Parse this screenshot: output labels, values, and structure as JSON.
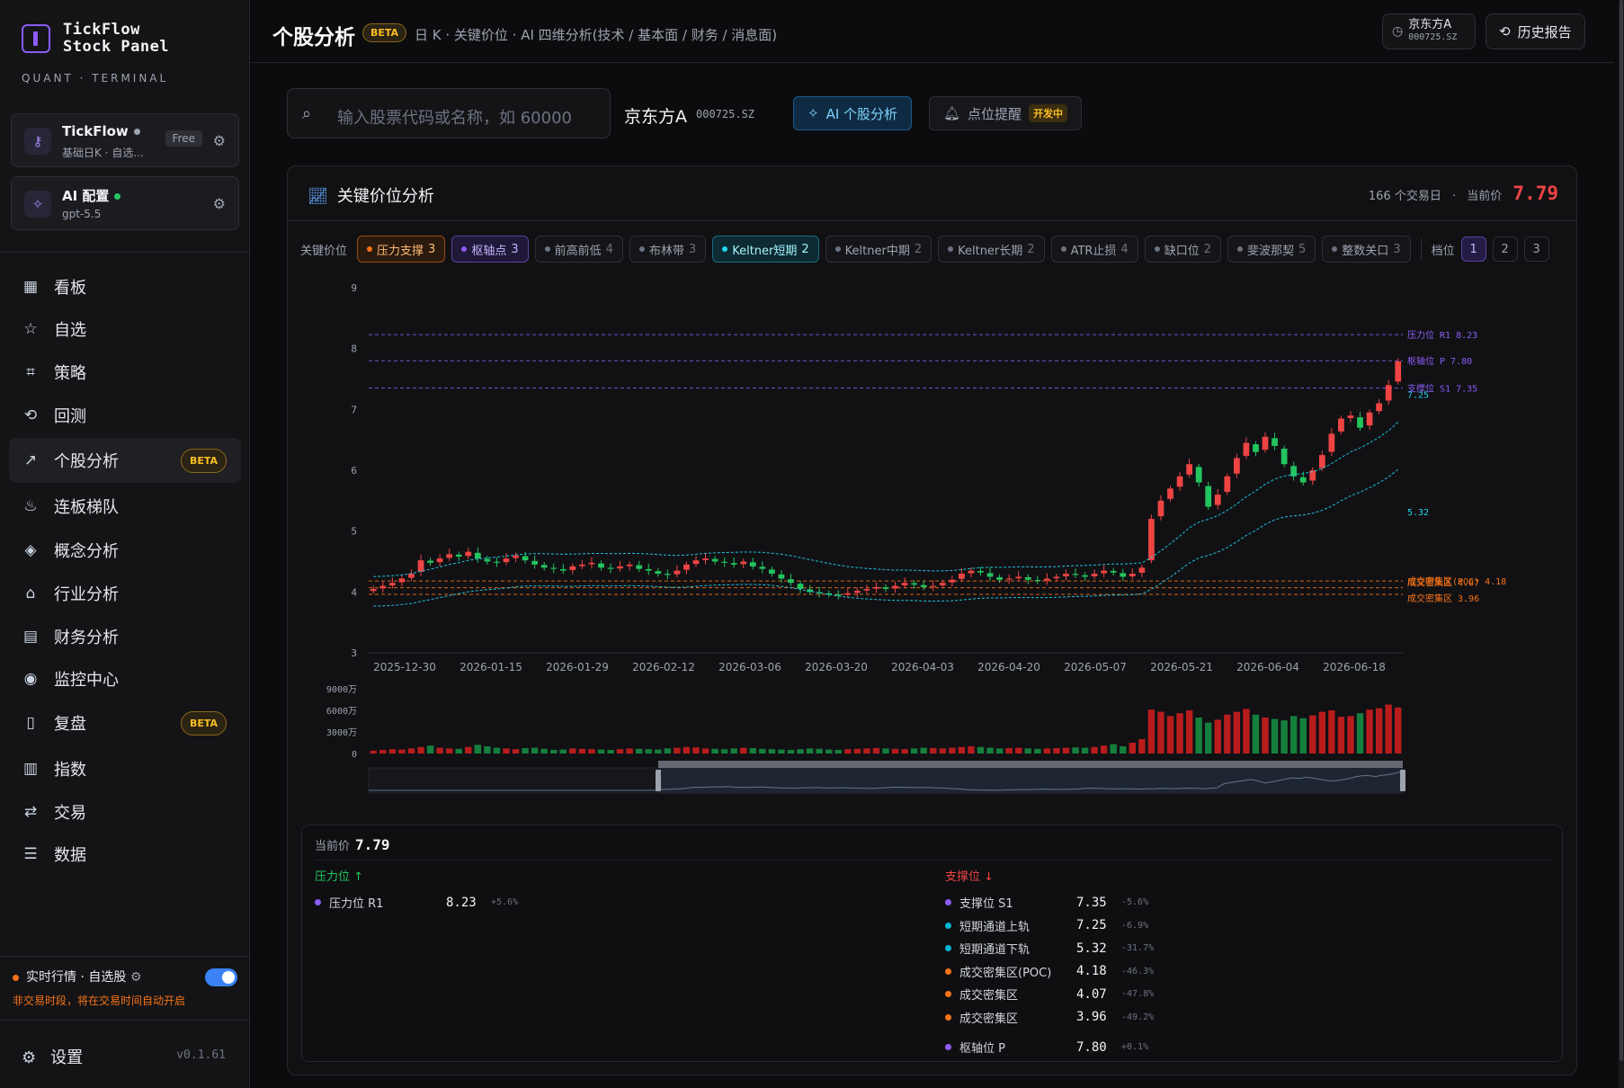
{
  "app": {
    "name": "TickFlow\nStock Panel",
    "name1": "TickFlow",
    "name2": "Stock Panel",
    "tagline": "QUANT · TERMINAL",
    "version": "v0.1.61"
  },
  "account_card": {
    "title": "TickFlow",
    "subtitle": "基础日K · 自选...",
    "badge": "Free",
    "status_color": "#9ca3af"
  },
  "ai_card": {
    "title": "AI 配置",
    "subtitle": "gpt-5.5",
    "status_color": "#22c55e"
  },
  "nav": [
    {
      "label": "看板",
      "icon": "grid-icon"
    },
    {
      "label": "自选",
      "icon": "star-icon"
    },
    {
      "label": "策略",
      "icon": "scan-icon"
    },
    {
      "label": "回测",
      "icon": "history-icon"
    },
    {
      "label": "个股分析",
      "icon": "trend-up-icon",
      "active": true,
      "badge": "BETA"
    },
    {
      "label": "连板梯队",
      "icon": "flame-icon"
    },
    {
      "label": "概念分析",
      "icon": "layers-icon"
    },
    {
      "label": "行业分析",
      "icon": "bank-icon"
    },
    {
      "label": "财务分析",
      "icon": "document-icon"
    },
    {
      "label": "监控中心",
      "icon": "radio-icon"
    },
    {
      "label": "复盘",
      "icon": "book-icon",
      "badge": "BETA"
    },
    {
      "label": "指数",
      "icon": "bar-chart-icon"
    },
    {
      "label": "交易",
      "icon": "exchange-icon"
    },
    {
      "label": "数据",
      "icon": "database-icon"
    }
  ],
  "realtime": {
    "label": "实时行情 · 自选股",
    "note": "非交易时段，将在交易时间自动开启",
    "enabled": true
  },
  "settings_label": "设置",
  "header": {
    "title": "个股分析",
    "badge": "BETA",
    "subtitle": "日 K · 关键价位 · AI 四维分析(技术 / 基本面 / 财务 / 消息面)",
    "recent_name": "京东方A",
    "recent_code": "000725.SZ",
    "history_label": "历史报告"
  },
  "search": {
    "placeholder": "输入股票代码或名称，如 60000"
  },
  "stock": {
    "name": "京东方A",
    "code": "000725.SZ"
  },
  "ai_button": "AI 个股分析",
  "alert_button": "点位提醒",
  "alert_badge": "开发中",
  "panel": {
    "title": "关键价位分析",
    "days": "166 个交易日",
    "current_label": "当前价",
    "current_price": "7.79",
    "chips_label": "关键价位",
    "chips": [
      {
        "label": "压力支撑",
        "count": "3",
        "state": "orange"
      },
      {
        "label": "枢轴点",
        "count": "3",
        "state": "purple"
      },
      {
        "label": "前高前低",
        "count": "4",
        "state": "off"
      },
      {
        "label": "布林带",
        "count": "3",
        "state": "off"
      },
      {
        "label": "Keltner短期",
        "count": "2",
        "state": "cyan"
      },
      {
        "label": "Keltner中期",
        "count": "2",
        "state": "off"
      },
      {
        "label": "Keltner长期",
        "count": "2",
        "state": "off"
      },
      {
        "label": "ATR止损",
        "count": "4",
        "state": "off"
      },
      {
        "label": "缺口位",
        "count": "2",
        "state": "off"
      },
      {
        "label": "斐波那契",
        "count": "5",
        "state": "off"
      },
      {
        "label": "整数关口",
        "count": "3",
        "state": "off"
      }
    ],
    "level_label": "档位",
    "levels": [
      "1",
      "2",
      "3"
    ],
    "active_level": "1"
  },
  "chart_data": {
    "type": "candlestick",
    "y_ticks": [
      "9",
      "8",
      "7",
      "6",
      "5",
      "4",
      "3"
    ],
    "ylim": [
      3,
      9
    ],
    "x_ticks": [
      "2025-12-30",
      "2026-01-15",
      "2026-01-29",
      "2026-02-12",
      "2026-03-06",
      "2026-03-20",
      "2026-04-03",
      "2026-04-20",
      "2026-05-07",
      "2026-05-21",
      "2026-06-04",
      "2026-06-18"
    ],
    "volume_ticks": [
      "9000万",
      "6000万",
      "3000万",
      "0"
    ],
    "volume_max": 9000,
    "closes": [
      4.05,
      4.1,
      4.15,
      4.22,
      4.3,
      4.52,
      4.48,
      4.55,
      4.62,
      4.58,
      4.66,
      4.55,
      4.5,
      4.48,
      4.55,
      4.6,
      4.52,
      4.45,
      4.4,
      4.38,
      4.35,
      4.42,
      4.45,
      4.48,
      4.4,
      4.38,
      4.42,
      4.45,
      4.38,
      4.35,
      4.3,
      4.28,
      4.35,
      4.45,
      4.52,
      4.55,
      4.5,
      4.48,
      4.45,
      4.5,
      4.42,
      4.38,
      4.3,
      4.22,
      4.15,
      4.05,
      4.0,
      3.98,
      3.96,
      3.95,
      3.98,
      4.02,
      4.05,
      4.08,
      4.05,
      4.1,
      4.15,
      4.12,
      4.08,
      4.1,
      4.15,
      4.2,
      4.3,
      4.35,
      4.32,
      4.25,
      4.2,
      4.22,
      4.25,
      4.2,
      4.18,
      4.22,
      4.25,
      4.3,
      4.28,
      4.25,
      4.3,
      4.35,
      4.32,
      4.25,
      4.3,
      4.4,
      5.2,
      5.5,
      5.7,
      5.9,
      6.1,
      5.8,
      5.4,
      5.6,
      5.9,
      6.2,
      6.45,
      6.3,
      6.55,
      6.4,
      6.1,
      5.9,
      5.8,
      6.0,
      6.25,
      6.6,
      6.85,
      6.9,
      6.7,
      6.95,
      7.1,
      7.4,
      7.79
    ],
    "volumes": [
      400,
      500,
      600,
      550,
      700,
      900,
      1100,
      800,
      700,
      650,
      900,
      1200,
      1000,
      800,
      700,
      600,
      750,
      800,
      650,
      500,
      550,
      700,
      650,
      600,
      550,
      500,
      600,
      700,
      650,
      600,
      550,
      700,
      800,
      900,
      850,
      700,
      650,
      600,
      700,
      800,
      750,
      650,
      600,
      550,
      500,
      600,
      700,
      650,
      550,
      500,
      600,
      650,
      700,
      750,
      700,
      650,
      600,
      700,
      800,
      750,
      700,
      800,
      900,
      1000,
      900,
      800,
      700,
      750,
      800,
      700,
      650,
      700,
      750,
      800,
      850,
      800,
      900,
      1100,
      1300,
      1000,
      1500,
      2000,
      6100,
      5800,
      5200,
      5600,
      6000,
      5000,
      4300,
      4700,
      5400,
      5800,
      6200,
      5400,
      5000,
      4800,
      4600,
      5200,
      4900,
      5300,
      5800,
      6000,
      5100,
      5200,
      5600,
      6100,
      6300,
      6800,
      6400
    ],
    "lines": [
      {
        "name": "压力位 R1",
        "value": 8.23,
        "color": "#8b5cf6",
        "label": "压力位 R1 8.23"
      },
      {
        "name": "枢轴位 P",
        "value": 7.8,
        "color": "#8b5cf6",
        "label": "枢轴位 P 7.80"
      },
      {
        "name": "支撑位 S1",
        "value": 7.35,
        "color": "#8b5cf6",
        "label": "支撑位 S1 7.35"
      },
      {
        "name": "成交密集区(POC)",
        "value": 4.18,
        "color": "#f97316",
        "label": "成交密集区(POC) 4.18"
      },
      {
        "name": "成交密集区",
        "value": 4.07,
        "color": "#f97316",
        "label": "成交密集区 4.07"
      },
      {
        "name": "成交密集区",
        "value": 3.96,
        "color": "#f97316",
        "label": "成交密集区 3.96"
      }
    ],
    "channel_labels": [
      {
        "value": 7.25,
        "label": "7.25"
      },
      {
        "value": 5.32,
        "label": "5.32"
      }
    ],
    "up_color": "#ef4444",
    "down_color": "#22c55e"
  },
  "levels_table": {
    "current_label": "当前价",
    "current": "7.79",
    "resistance_title": "压力位 ↑",
    "support_title": "支撑位 ↓",
    "resistance": [
      {
        "name": "压力位 R1",
        "value": "8.23",
        "pct": "+5.6%",
        "color": "#8b5cf6"
      }
    ],
    "support": [
      {
        "name": "支撑位 S1",
        "value": "7.35",
        "pct": "-5.6%",
        "color": "#8b5cf6"
      },
      {
        "name": "短期通道上轨",
        "value": "7.25",
        "pct": "-6.9%",
        "color": "#06b6d4"
      },
      {
        "name": "短期通道下轨",
        "value": "5.32",
        "pct": "-31.7%",
        "color": "#06b6d4"
      },
      {
        "name": "成交密集区(POC)",
        "value": "4.18",
        "pct": "-46.3%",
        "color": "#f97316"
      },
      {
        "name": "成交密集区",
        "value": "4.07",
        "pct": "-47.8%",
        "color": "#f97316"
      },
      {
        "name": "成交密集区",
        "value": "3.96",
        "pct": "-49.2%",
        "color": "#f97316"
      }
    ],
    "pivot": {
      "name": "枢轴位 P",
      "value": "7.80",
      "pct": "+0.1%",
      "color": "#8b5cf6"
    }
  }
}
